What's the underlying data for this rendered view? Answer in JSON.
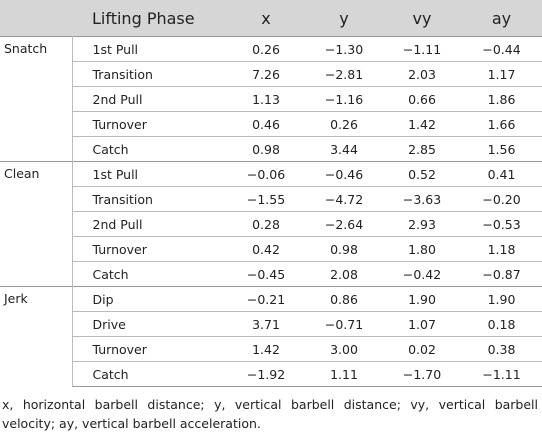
{
  "table": {
    "header": [
      "Lifting Phase",
      "x",
      "y",
      "vy",
      "ay"
    ],
    "groups": [
      {
        "name": "Snatch",
        "rows": [
          [
            "1st Pull",
            "0.26",
            "−1.30",
            "−1.11",
            "−0.44"
          ],
          [
            "Transition",
            "7.26",
            "−2.81",
            "2.03",
            "1.17"
          ],
          [
            "2nd Pull",
            "1.13",
            "−1.16",
            "0.66",
            "1.86"
          ],
          [
            "Turnover",
            "0.46",
            "0.26",
            "1.42",
            "1.66"
          ],
          [
            "Catch",
            "0.98",
            "3.44",
            "2.85",
            "1.56"
          ]
        ]
      },
      {
        "name": "Clean",
        "rows": [
          [
            "1st Pull",
            "−0.06",
            "−0.46",
            "0.52",
            "0.41"
          ],
          [
            "Transition",
            "−1.55",
            "−4.72",
            "−3.63",
            "−0.20"
          ],
          [
            "2nd Pull",
            "0.28",
            "−2.64",
            "2.93",
            "−0.53"
          ],
          [
            "Turnover",
            "0.42",
            "0.98",
            "1.80",
            "1.18"
          ],
          [
            "Catch",
            "−0.45",
            "2.08",
            "−0.42",
            "−0.87"
          ]
        ]
      },
      {
        "name": "Jerk",
        "rows": [
          [
            "Dip",
            "−0.21",
            "0.86",
            "1.90",
            "1.90"
          ],
          [
            "Drive",
            "3.71",
            "−0.71",
            "1.07",
            "0.18"
          ],
          [
            "Turnover",
            "1.42",
            "3.00",
            "0.02",
            "0.38"
          ],
          [
            "Catch",
            "−1.92",
            "1.11",
            "−1.70",
            "−1.11"
          ]
        ]
      }
    ]
  },
  "footnote": "x, horizontal barbell distance; y, vertical barbell distance; vy, vertical barbell velocity; ay, vertical barbell acceleration."
}
